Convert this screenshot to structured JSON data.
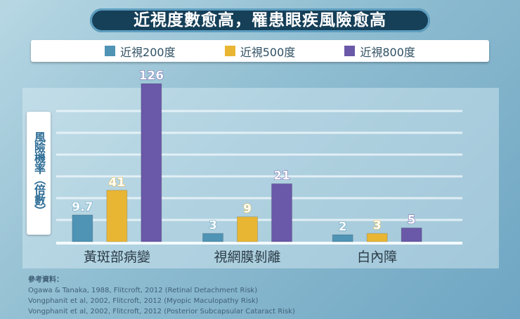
{
  "title": "近視度數愈高，罹患眼疾風險愈高",
  "chart_data": {
    "type": "bar",
    "title": "近視度數愈高，罹患眼疾風險愈高",
    "ylabel": "風險機率（倍數）",
    "xlabel": "",
    "categories": [
      "黃斑部病變",
      "視網膜剝離",
      "白內障"
    ],
    "series": [
      {
        "name": "近視200度",
        "color": "#4f93b5",
        "values": [
          9.7,
          3,
          2
        ],
        "labels": [
          "9.7",
          "3",
          "2"
        ]
      },
      {
        "name": "近視500度",
        "color": "#e9b634",
        "values": [
          41,
          9,
          3
        ],
        "labels": [
          "41",
          "9",
          "3"
        ]
      },
      {
        "name": "近視800度",
        "color": "#6a58a8",
        "values": [
          126,
          21,
          5
        ],
        "labels": [
          "126",
          "21",
          "5"
        ]
      }
    ],
    "grid": true,
    "legend_position": "top"
  },
  "references": {
    "heading": "參考資料：",
    "items": [
      "Ogawa & Tanaka, 1988, Flitcroft, 2012 (Retinal Detachment Risk)",
      "Vongphanit et al, 2002, Flitcroft, 2012 (Myopic Maculopathy Risk)",
      "Vongphanit et al, 2002, Flitcroft, 2012 (Posterior Subcapsular Cataract Risk)"
    ]
  }
}
